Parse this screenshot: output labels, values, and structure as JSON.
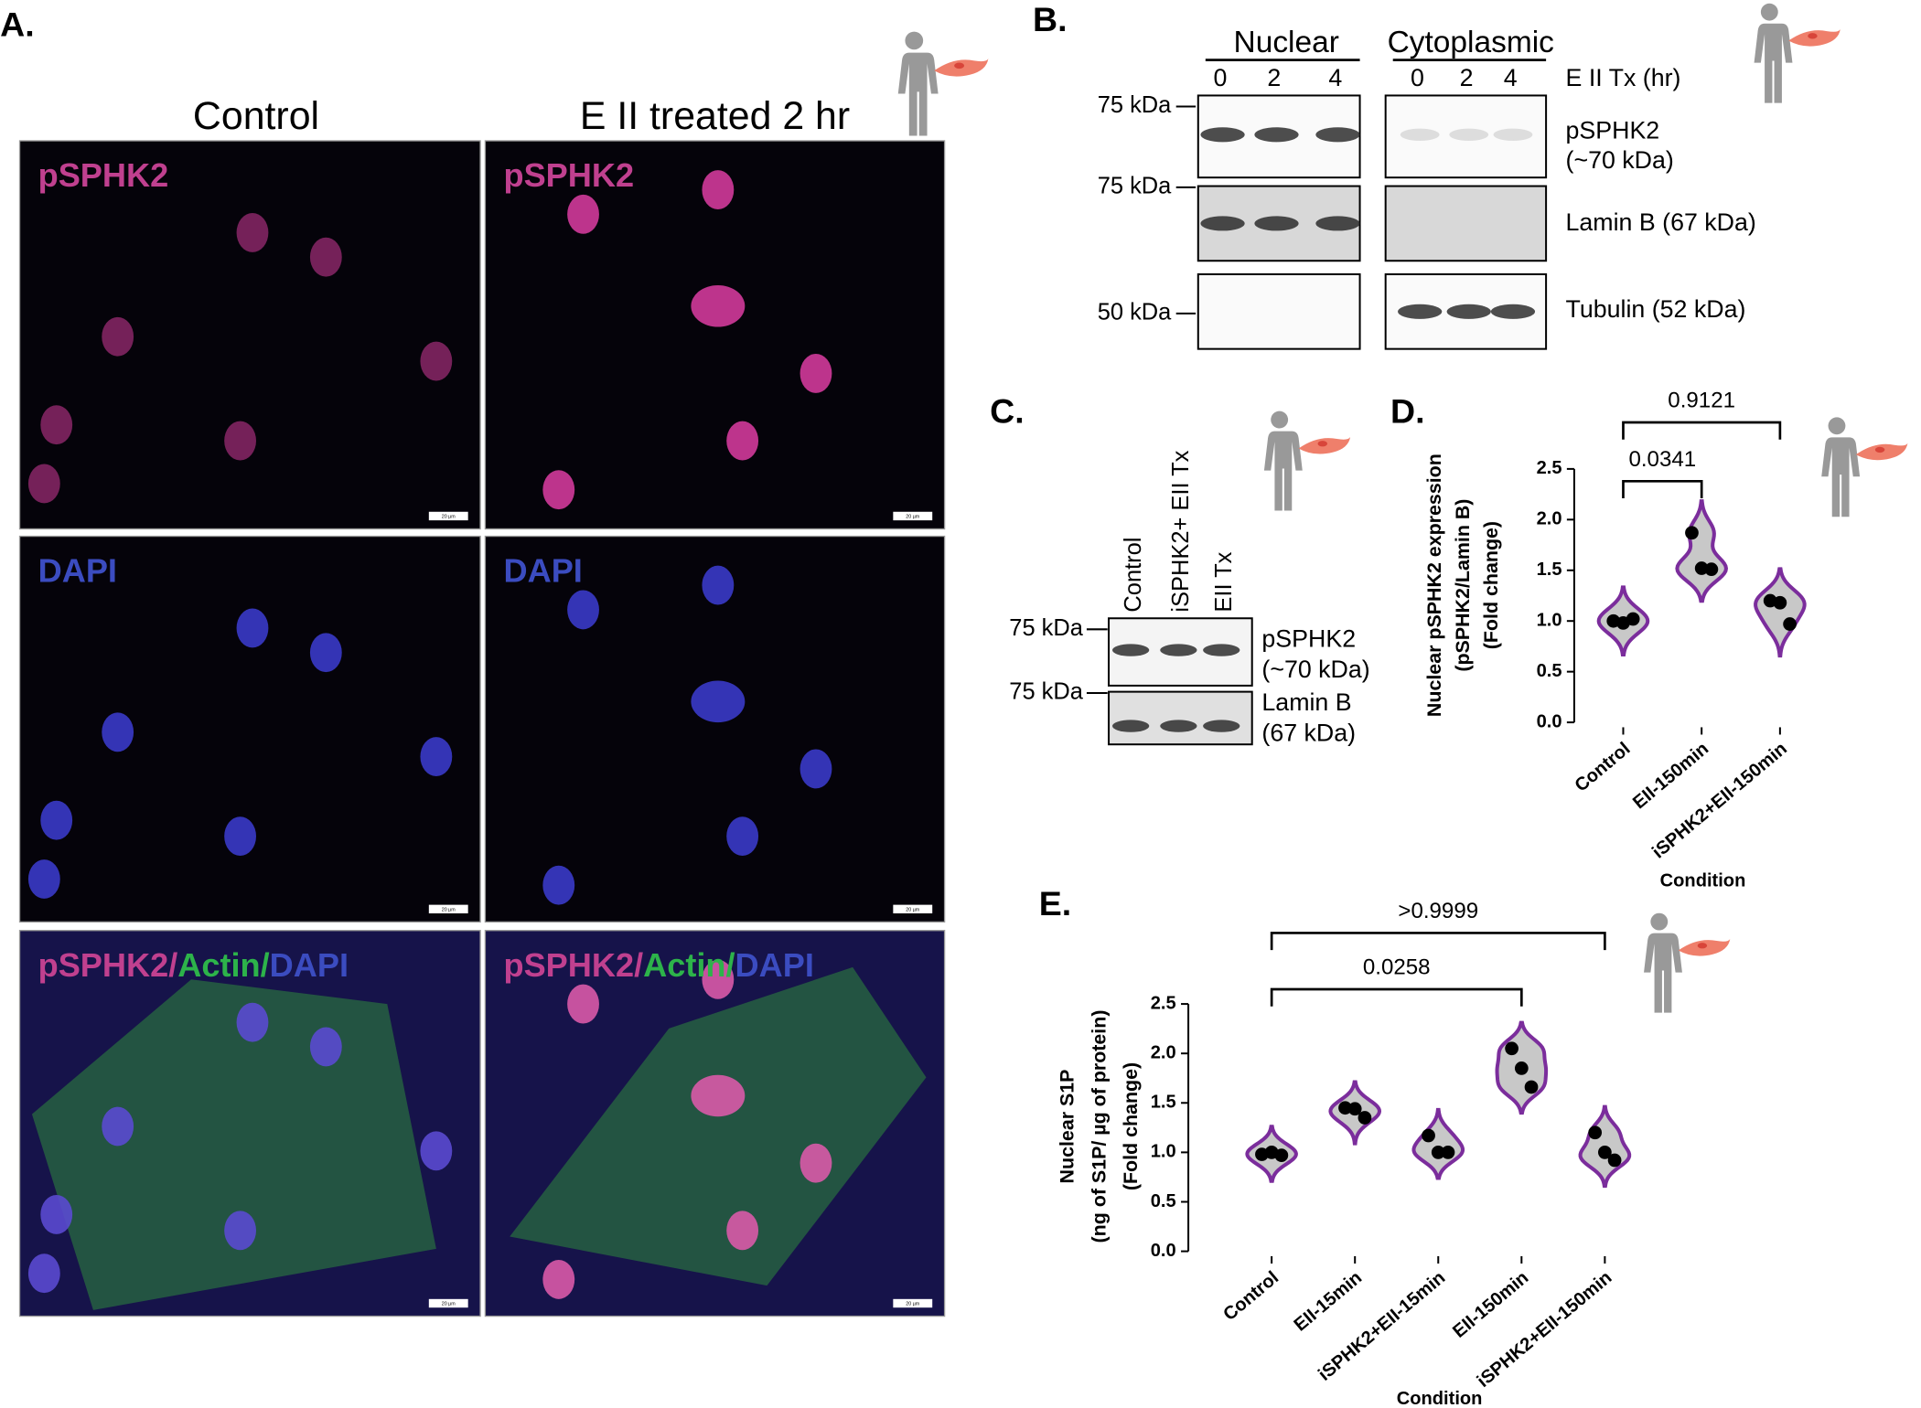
{
  "panel_a": {
    "label": "A.",
    "columns": [
      "Control",
      "E II treated 2 hr"
    ],
    "rows": [
      [
        {
          "text": "pSPHK2",
          "color": "#c0408f"
        }
      ],
      [
        {
          "text": "DAPI",
          "color": "#3b4cc0"
        }
      ],
      [
        {
          "text": "pSPHK2/",
          "color": "#c0408f"
        },
        {
          "text": "Actin/",
          "color": "#2db34a"
        },
        {
          "text": "DAPI",
          "color": "#3b4cc0"
        }
      ]
    ],
    "scale_bar": "20 µm"
  },
  "panel_b": {
    "label": "B.",
    "groups": [
      "Nuclear",
      "Cytoplasmic"
    ],
    "lanes": [
      "0",
      "2",
      "4"
    ],
    "lane_title": "E II Tx (hr)",
    "markers": [
      "75 kDa",
      "75 kDa",
      "50 kDa"
    ],
    "rows": [
      [
        "pSPHK2",
        "(~70 kDa)"
      ],
      [
        "Lamin B (67 kDa)"
      ],
      [
        "Tubulin (52 kDa)"
      ]
    ]
  },
  "panel_c": {
    "label": "C.",
    "lanes": [
      "Control",
      "iSPHK2+ EII Tx",
      "EII Tx"
    ],
    "markers": [
      "75 kDa",
      "75 kDa"
    ],
    "rows": [
      [
        "pSPHK2",
        "(~70 kDa)"
      ],
      [
        "Lamin B",
        "(67 kDa)"
      ]
    ]
  },
  "chart_data": [
    {
      "type": "violin",
      "label": "D.",
      "y_label": [
        "Nuclear pSPHK2 expression",
        "(pSPHK2/Lamin B)",
        "(Fold change)"
      ],
      "x_label": "Condition",
      "categories": [
        "Control",
        "EII-150min",
        "iSPHK2+EII-150min"
      ],
      "values": [
        [
          1.0,
          0.98,
          1.02
        ],
        [
          1.87,
          1.52,
          1.51
        ],
        [
          1.2,
          1.18,
          0.97
        ]
      ],
      "color": "#7b2d9c",
      "fill": "#c8c8c8",
      "ylim": [
        0,
        2.5
      ],
      "yticks": [
        {
          "value": 0,
          "label": "0.0"
        },
        0.5,
        {
          "value": 1,
          "label": "1.0"
        },
        1.5,
        {
          "value": 2,
          "label": "2.0"
        },
        2.5
      ],
      "comparisons": [
        {
          "groups": [
            "Control",
            "EII-150min"
          ],
          "label": "0.0341"
        },
        {
          "groups": [
            "Control",
            "iSPHK2+EII-150min"
          ],
          "label": "0.9121"
        }
      ]
    },
    {
      "type": "violin",
      "label": "E.",
      "y_label": [
        "Nuclear S1P",
        "(ng of S1P/ µg of protein)",
        "(Fold change)"
      ],
      "x_label": "Condition",
      "categories": [
        "Control",
        "EII-15min",
        "iSPHK2+EII-15min",
        "EII-150min",
        "iSPHK2+EII-150min"
      ],
      "values": [
        [
          0.98,
          1.0,
          0.97
        ],
        [
          1.45,
          1.44,
          1.35
        ],
        [
          1.17,
          1.0,
          1.0
        ],
        [
          2.05,
          1.85,
          1.66
        ],
        [
          1.2,
          1.0,
          0.92
        ]
      ],
      "color": "#7b2d9c",
      "fill": "#c8c8c8",
      "ylim": [
        0,
        2.5
      ],
      "yticks": [
        {
          "value": 0,
          "label": "0.0"
        },
        0.5,
        {
          "value": 1,
          "label": "1.0"
        },
        1.5,
        {
          "value": 2,
          "label": "2.0"
        },
        2.5
      ],
      "comparisons": [
        {
          "groups": [
            "Control",
            "EII-150min"
          ],
          "label": "0.0258"
        },
        {
          "groups": [
            "Control",
            "iSPHK2+EII-150min"
          ],
          "label": ">0.9999"
        }
      ]
    }
  ]
}
